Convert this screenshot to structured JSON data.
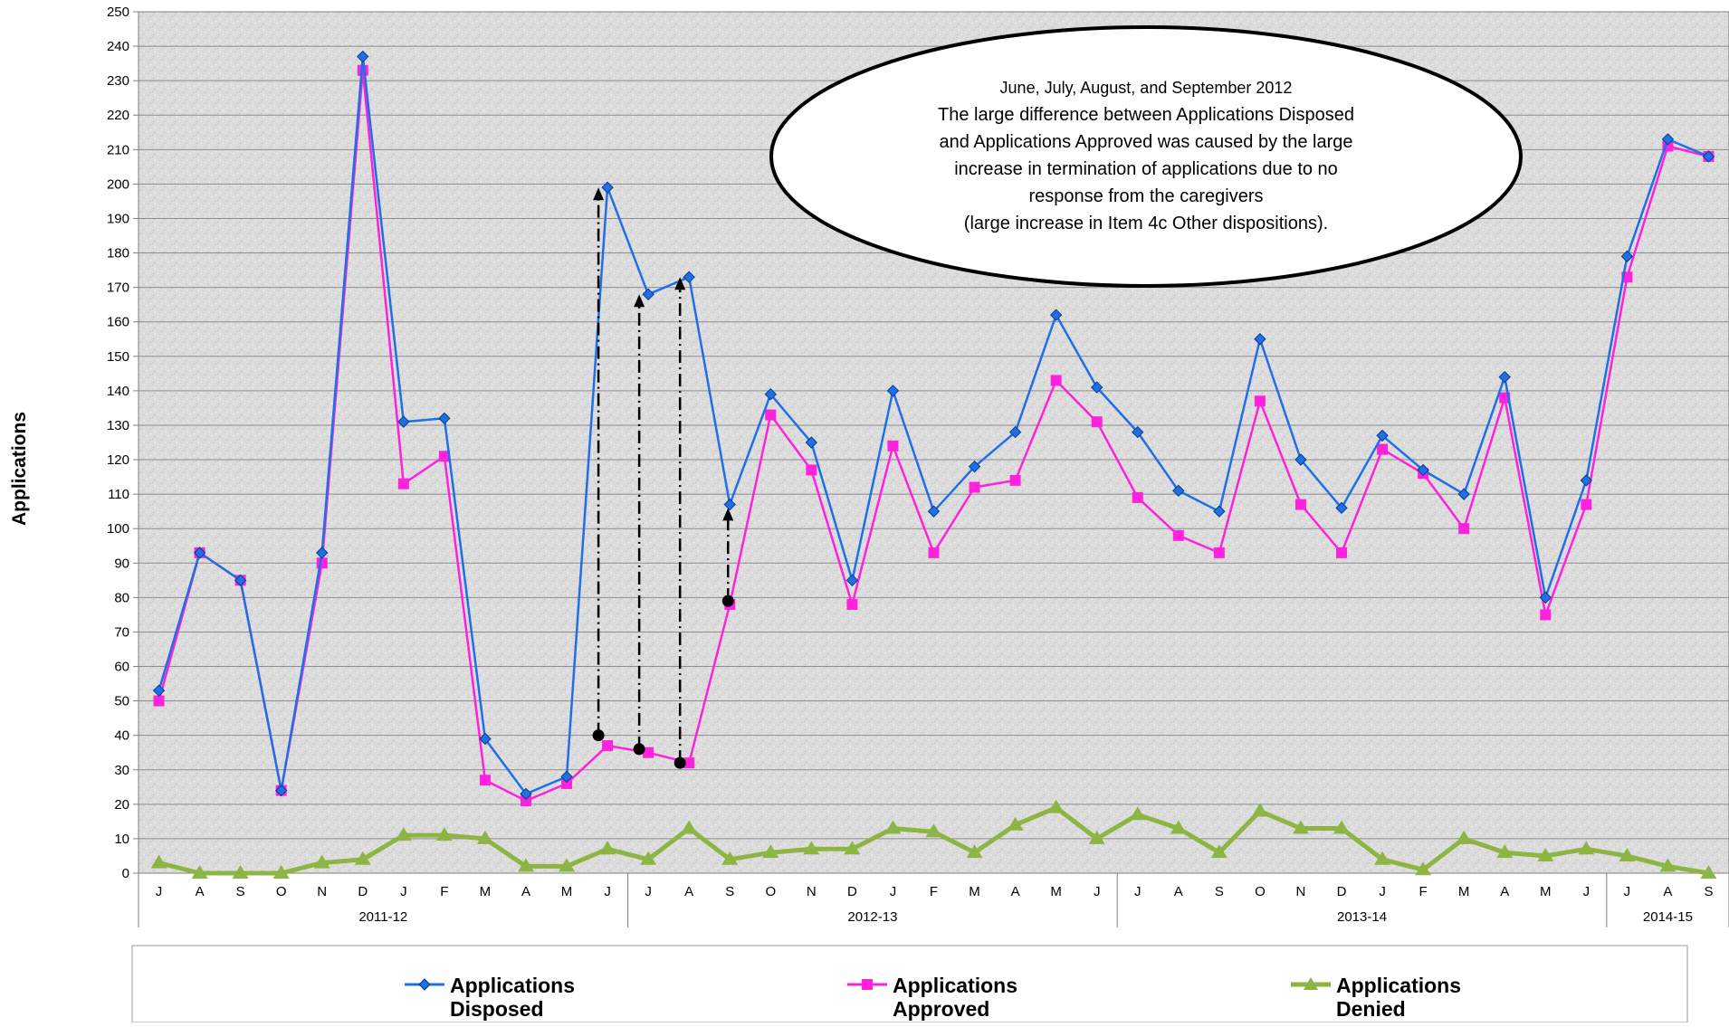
{
  "chart_data": {
    "type": "line",
    "ylabel": "Applications",
    "xlabel": "",
    "ylim": [
      0,
      250
    ],
    "ytick_step": 10,
    "grid": true,
    "legend_position": "bottom",
    "x": [
      "J",
      "A",
      "S",
      "O",
      "N",
      "D",
      "J",
      "F",
      "M",
      "A",
      "M",
      "J",
      "J",
      "A",
      "S",
      "O",
      "N",
      "D",
      "J",
      "F",
      "M",
      "A",
      "M",
      "J",
      "J",
      "A",
      "S",
      "O",
      "N",
      "D",
      "J",
      "F",
      "M",
      "A",
      "M",
      "J",
      "J",
      "A",
      "S"
    ],
    "fiscal_years": [
      {
        "label": "2011-12",
        "months": 12
      },
      {
        "label": "2012-13",
        "months": 12
      },
      {
        "label": "2013-14",
        "months": 12
      },
      {
        "label": "2014-15",
        "months": 3
      }
    ],
    "series": [
      {
        "name": "Applications Disposed",
        "color": "#1F6FE5",
        "marker": "diamond",
        "values": [
          53,
          93,
          85,
          24,
          93,
          237,
          131,
          132,
          39,
          23,
          28,
          199,
          168,
          173,
          107,
          139,
          125,
          85,
          140,
          105,
          118,
          128,
          162,
          141,
          128,
          111,
          105,
          155,
          120,
          106,
          127,
          117,
          110,
          144,
          80,
          114,
          179,
          213,
          208
        ]
      },
      {
        "name": "Applications Approved",
        "color": "#FF22DD",
        "marker": "square",
        "values": [
          50,
          93,
          85,
          24,
          90,
          233,
          113,
          121,
          27,
          21,
          26,
          37,
          35,
          32,
          78,
          133,
          117,
          78,
          124,
          93,
          112,
          114,
          143,
          131,
          109,
          98,
          93,
          137,
          107,
          93,
          123,
          116,
          100,
          138,
          75,
          107,
          173,
          211,
          208
        ]
      },
      {
        "name": "Applications Denied",
        "color": "#8DB544",
        "marker": "triangle",
        "values": [
          3,
          0,
          0,
          0,
          3,
          4,
          11,
          11,
          10,
          2,
          2,
          7,
          4,
          13,
          4,
          6,
          7,
          7,
          13,
          12,
          6,
          14,
          19,
          10,
          17,
          13,
          6,
          18,
          13,
          13,
          4,
          1,
          10,
          6,
          5,
          7,
          5,
          2,
          0
        ]
      }
    ],
    "highlight_arrows": [
      {
        "x_index": 11,
        "from": 40,
        "to": 199
      },
      {
        "x_index": 12,
        "from": 36,
        "to": 168
      },
      {
        "x_index": 13,
        "from": 32,
        "to": 173
      },
      {
        "x_index": 14,
        "from": 79,
        "to": 106
      }
    ],
    "annotation": {
      "lines": [
        "June, July, August, and September 2012",
        "The large difference between Applications Disposed",
        "and Applications Approved  was caused by the large",
        "increase in termination of applications due to no",
        "response from the caregivers",
        "(large increase in Item 4c Other dispositions)."
      ]
    },
    "legend": [
      {
        "line1": "Applications",
        "line2": "Disposed"
      },
      {
        "line1": "Applications",
        "line2": "Approved"
      },
      {
        "line1": "Applications",
        "line2": "Denied"
      }
    ]
  }
}
